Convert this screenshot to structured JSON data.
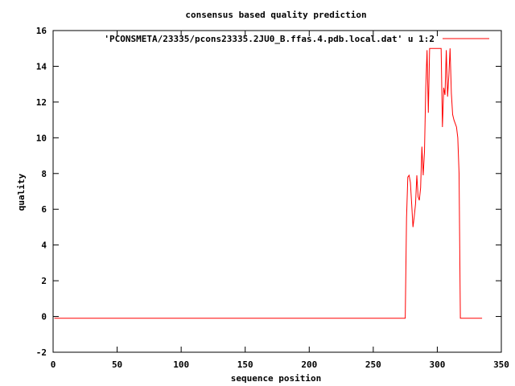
{
  "chart_data": {
    "type": "line",
    "title": "consensus based quality prediction",
    "xlabel": "sequence position",
    "ylabel": "quality",
    "xlim": [
      0,
      350
    ],
    "ylim": [
      -2,
      16
    ],
    "xticks": [
      0,
      50,
      100,
      150,
      200,
      250,
      300,
      350
    ],
    "yticks": [
      -2,
      0,
      2,
      4,
      6,
      8,
      10,
      12,
      14,
      16
    ],
    "legend_position": "top-right",
    "series": [
      {
        "name": "'PCONSMETA/23335/pcons23335.2JU0_B.ffas.4.pdb.local.dat' u 1:2",
        "color": "#ff0000",
        "x": [
          1,
          275,
          276,
          277,
          278,
          279,
          280,
          281,
          282,
          283,
          284,
          285,
          286,
          287,
          288,
          289,
          290,
          291,
          292,
          293,
          294,
          295,
          296,
          297,
          298,
          299,
          300,
          301,
          302,
          303,
          304,
          305,
          306,
          307,
          308,
          309,
          310,
          311,
          312,
          313,
          314,
          315,
          316,
          317,
          318,
          319,
          320,
          335
        ],
        "y": [
          -0.1,
          -0.1,
          5.5,
          7.8,
          7.9,
          7.5,
          6.3,
          5.0,
          5.6,
          6.3,
          7.9,
          6.7,
          6.5,
          7.2,
          9.5,
          7.9,
          9.2,
          12.8,
          14.9,
          11.4,
          15.0,
          15.0,
          15.0,
          15.0,
          15.0,
          15.0,
          15.0,
          15.0,
          15.0,
          15.0,
          10.6,
          12.8,
          12.4,
          14.9,
          12.3,
          13.5,
          15.0,
          12.5,
          11.3,
          11.0,
          10.8,
          10.6,
          10.0,
          8.0,
          -0.1,
          -0.1,
          -0.1,
          -0.1
        ]
      }
    ]
  }
}
